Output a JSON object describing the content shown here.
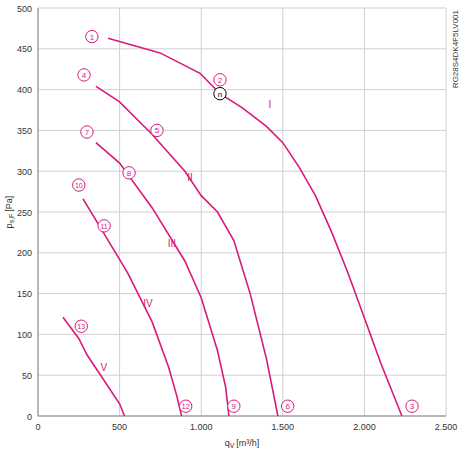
{
  "chart_data": {
    "type": "line",
    "title": "RG28S4DK4F5LV001",
    "xlabel": {
      "text": "q",
      "sub": "V",
      "unit": "[m³/h]"
    },
    "ylabel": {
      "text": "p",
      "sub": "s,F",
      "unit": "[Pa]"
    },
    "xlim": [
      0,
      2500
    ],
    "ylim": [
      0,
      500
    ],
    "xticks": [
      0,
      500,
      {
        "value": 1000,
        "label": "1.000"
      },
      {
        "value": 1500,
        "label": "1.500"
      },
      {
        "value": 2000,
        "label": "2.000"
      },
      {
        "value": 2500,
        "label": "2.500"
      }
    ],
    "yticks": [
      0,
      50,
      100,
      150,
      200,
      250,
      300,
      350,
      400,
      450,
      500
    ],
    "grid": true,
    "color": "#d8197d",
    "series": [
      {
        "name": "I",
        "label_x": 1421,
        "label_y": 382,
        "x": [
          429,
          748,
          993,
          1115,
          1250,
          1400,
          1500,
          1600,
          1700,
          1800,
          1900,
          2000,
          2100,
          2200,
          2230
        ],
        "values": [
          463,
          445,
          420,
          395,
          378,
          355,
          335,
          305,
          270,
          225,
          175,
          120,
          65,
          15,
          0
        ]
      },
      {
        "name": "II",
        "label_x": 931,
        "label_y": 292,
        "x": [
          355,
          500,
          700,
          900,
          1000,
          1100,
          1200,
          1300,
          1400,
          1450,
          1470
        ],
        "values": [
          404,
          385,
          345,
          300,
          270,
          250,
          215,
          150,
          70,
          20,
          0
        ]
      },
      {
        "name": "III",
        "label_x": 821,
        "label_y": 211,
        "x": [
          355,
          500,
          700,
          900,
          1000,
          1100,
          1150,
          1170
        ],
        "values": [
          335,
          310,
          255,
          190,
          145,
          80,
          35,
          0
        ]
      },
      {
        "name": "IV",
        "label_x": 674,
        "label_y": 138,
        "x": [
          276,
          400,
          550,
          700,
          800,
          850,
          880
        ],
        "values": [
          266,
          225,
          175,
          115,
          60,
          25,
          0
        ]
      },
      {
        "name": "V",
        "label_x": 404,
        "label_y": 60,
        "x": [
          153,
          250,
          300,
          400,
          500,
          530
        ],
        "values": [
          121,
          95,
          75,
          45,
          15,
          0
        ]
      }
    ],
    "annotations": [
      {
        "text": "1",
        "x": 330,
        "y": 465,
        "marker": "circle",
        "color": "#d8197d"
      },
      {
        "text": "2",
        "x": 1115,
        "y": 412,
        "marker": "circle",
        "color": "#d8197d"
      },
      {
        "text": "n",
        "x": 1115,
        "y": 395,
        "marker": "circle",
        "color": "#000000"
      },
      {
        "text": "3",
        "x": 2292,
        "y": 12,
        "marker": "circle",
        "color": "#d8197d"
      },
      {
        "text": "4",
        "x": 282,
        "y": 418,
        "marker": "circle",
        "color": "#d8197d"
      },
      {
        "text": "5",
        "x": 729,
        "y": 350,
        "marker": "circle",
        "color": "#d8197d"
      },
      {
        "text": "6",
        "x": 1530,
        "y": 12,
        "marker": "circle",
        "color": "#d8197d"
      },
      {
        "text": "7",
        "x": 300,
        "y": 348,
        "marker": "circle",
        "color": "#d8197d"
      },
      {
        "text": "8",
        "x": 558,
        "y": 298,
        "marker": "circle",
        "color": "#d8197d"
      },
      {
        "text": "9",
        "x": 1200,
        "y": 12,
        "marker": "circle",
        "color": "#d8197d"
      },
      {
        "text": "10",
        "x": 250,
        "y": 283,
        "marker": "circle",
        "color": "#d8197d"
      },
      {
        "text": "11",
        "x": 405,
        "y": 233,
        "marker": "circle",
        "color": "#d8197d"
      },
      {
        "text": "12",
        "x": 905,
        "y": 12,
        "marker": "circle",
        "color": "#d8197d"
      },
      {
        "text": "13",
        "x": 265,
        "y": 110,
        "marker": "circle",
        "color": "#d8197d"
      }
    ]
  }
}
